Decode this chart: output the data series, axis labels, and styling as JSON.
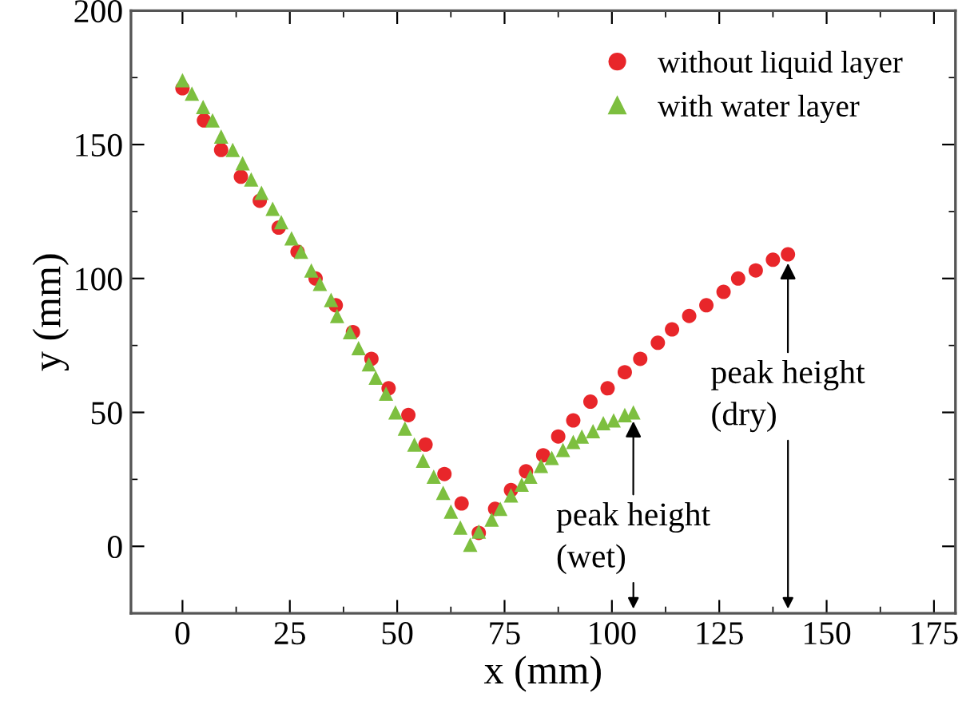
{
  "chart_data": {
    "type": "scatter",
    "xlabel": "x (mm)",
    "ylabel": "y (mm)",
    "xlim": [
      -12,
      180
    ],
    "ylim": [
      -25,
      200
    ],
    "xticks": [
      0,
      25,
      50,
      75,
      100,
      125,
      150,
      175
    ],
    "yticks": [
      0,
      50,
      100,
      150,
      200
    ],
    "legend": "top right",
    "grid": false,
    "series": [
      {
        "name": "without liquid layer",
        "color": "#e8262a",
        "marker": "circle",
        "x": [
          0,
          5,
          9,
          13.6,
          18,
          22.4,
          26.8,
          31,
          35.7,
          39.7,
          44,
          48,
          52.6,
          56.6,
          61,
          65,
          69,
          72.8,
          76.5,
          80,
          84,
          87.5,
          91,
          95,
          99,
          103,
          106.6,
          110.7,
          114,
          118,
          122,
          126,
          129.4,
          133.5,
          137.5,
          141
        ],
        "values": [
          171,
          159,
          148,
          138,
          129,
          119,
          110,
          100,
          90,
          80,
          70,
          59,
          49,
          38,
          27,
          16,
          5,
          14,
          21,
          28,
          34,
          41,
          47,
          54,
          59,
          65,
          70,
          76,
          81,
          86,
          90,
          95,
          100,
          103,
          107,
          109
        ]
      },
      {
        "name": "with water layer",
        "color": "#7dbf3f",
        "marker": "triangle",
        "x": [
          0,
          2.2,
          4.8,
          7,
          9,
          11.7,
          14,
          16,
          18.4,
          21,
          23,
          25.4,
          27.6,
          30,
          32,
          34.6,
          36,
          39,
          41,
          43.4,
          45,
          47.4,
          49.6,
          51.8,
          54,
          56,
          58.5,
          60.7,
          62.5,
          64.7,
          67,
          69,
          72,
          74,
          76.5,
          79,
          81,
          83.5,
          86,
          88.6,
          91,
          93,
          95.6,
          98,
          100.4,
          103,
          105
        ],
        "values": [
          174,
          169,
          164,
          159,
          153,
          148,
          143,
          137,
          132,
          126,
          121,
          115,
          110,
          103,
          98,
          92,
          86,
          80,
          74,
          68,
          63,
          57,
          50,
          44,
          38,
          32,
          26,
          20,
          13,
          7,
          0.6,
          5.5,
          10,
          14,
          19,
          23,
          26,
          30,
          33,
          36,
          39,
          41,
          43,
          46,
          47,
          49,
          50
        ]
      }
    ],
    "annotations": [
      {
        "text": "peak height\n(wet)",
        "x": 105,
        "y": 50
      },
      {
        "text": "peak height\n(dry)",
        "x": 141,
        "y": 109
      }
    ]
  }
}
